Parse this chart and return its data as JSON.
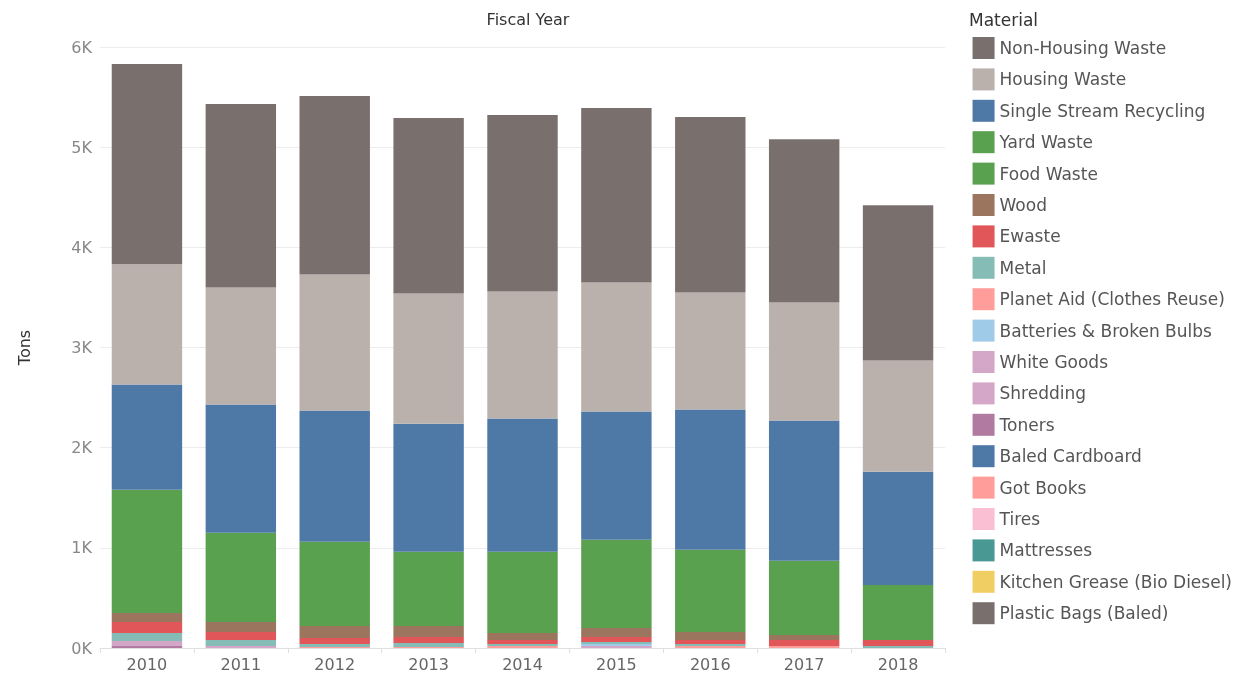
{
  "chart_data": {
    "type": "bar",
    "stacked": true,
    "xlabel": "Fiscal Year",
    "ylabel": "Tons",
    "legend_title": "Material",
    "legend": "right",
    "grid": "y",
    "categories": [
      "2010",
      "2011",
      "2012",
      "2013",
      "2014",
      "2015",
      "2016",
      "2017",
      "2018"
    ],
    "ylim": [
      0,
      6000
    ],
    "yticks": [
      {
        "value": 0,
        "label": "0K"
      },
      {
        "value": 1000,
        "label": "1K"
      },
      {
        "value": 2000,
        "label": "2K"
      },
      {
        "value": 3000,
        "label": "3K"
      },
      {
        "value": 4000,
        "label": "4K"
      },
      {
        "value": 5000,
        "label": "5K"
      },
      {
        "value": 6000,
        "label": "6K"
      }
    ],
    "series": [
      {
        "name": "Plastic Bags (Baled)",
        "color": "#79706e",
        "values": [
          null,
          null,
          null,
          null,
          null,
          null,
          null,
          null,
          null
        ]
      },
      {
        "name": "Kitchen Grease (Bio Diesel)",
        "color": "#f1ce63",
        "values": [
          null,
          null,
          null,
          null,
          null,
          null,
          null,
          null,
          null
        ]
      },
      {
        "name": "Mattresses",
        "color": "#499894",
        "values": [
          null,
          null,
          null,
          null,
          null,
          null,
          null,
          null,
          null
        ]
      },
      {
        "name": "Tires",
        "color": "#fabfd2",
        "values": [
          null,
          null,
          null,
          null,
          null,
          null,
          null,
          null,
          null
        ]
      },
      {
        "name": "Got Books",
        "color": "#ff9d9a",
        "values": [
          null,
          null,
          null,
          null,
          null,
          null,
          null,
          null,
          null
        ]
      },
      {
        "name": "Baled Cardboard",
        "color": "#4e79a7",
        "values": [
          null,
          null,
          null,
          null,
          null,
          null,
          null,
          null,
          null
        ]
      },
      {
        "name": "Toners",
        "color": "#b07aa1",
        "values": [
          20,
          null,
          null,
          null,
          null,
          null,
          null,
          null,
          null
        ]
      },
      {
        "name": "Shredding",
        "color": "#d4a6c8",
        "values": [
          20,
          20,
          null,
          null,
          null,
          null,
          null,
          null,
          null
        ]
      },
      {
        "name": "White Goods",
        "color": "#d4a6c8",
        "values": [
          30,
          null,
          null,
          null,
          null,
          20,
          null,
          null,
          null
        ]
      },
      {
        "name": "Batteries & Broken Bulbs",
        "color": "#a0cbe8",
        "values": [
          null,
          null,
          null,
          null,
          null,
          20,
          null,
          null,
          null
        ]
      },
      {
        "name": "Planet Aid (Clothes Reuse)",
        "color": "#ff9d9a",
        "values": [
          null,
          null,
          10,
          10,
          20,
          null,
          20,
          20,
          null
        ]
      },
      {
        "name": "Metal",
        "color": "#86bcb6",
        "values": [
          80,
          60,
          30,
          40,
          20,
          20,
          20,
          null,
          20
        ]
      },
      {
        "name": "Ewaste",
        "color": "#e15759",
        "values": [
          110,
          80,
          60,
          60,
          40,
          50,
          40,
          60,
          60
        ]
      },
      {
        "name": "Wood",
        "color": "#9c755f",
        "values": [
          90,
          100,
          120,
          110,
          70,
          90,
          80,
          50,
          null
        ]
      },
      {
        "name": "Food Waste",
        "color": "#59a14f",
        "values": [
          1230,
          890,
          840,
          740,
          810,
          880,
          820,
          740,
          550
        ]
      },
      {
        "name": "Yard Waste",
        "color": "#59a14f",
        "values": [
          null,
          null,
          null,
          null,
          null,
          null,
          null,
          null,
          null
        ]
      },
      {
        "name": "Single Stream Recycling",
        "color": "#4e79a7",
        "values": [
          1050,
          1280,
          1310,
          1280,
          1330,
          1280,
          1400,
          1400,
          1130
        ]
      },
      {
        "name": "Housing Waste",
        "color": "#bab0ac",
        "values": [
          1200,
          1170,
          1360,
          1300,
          1270,
          1290,
          1170,
          1180,
          1110
        ]
      },
      {
        "name": "Non-Housing Waste",
        "color": "#79706e",
        "values": [
          2000,
          1830,
          1780,
          1750,
          1760,
          1740,
          1750,
          1630,
          1550
        ]
      }
    ]
  }
}
